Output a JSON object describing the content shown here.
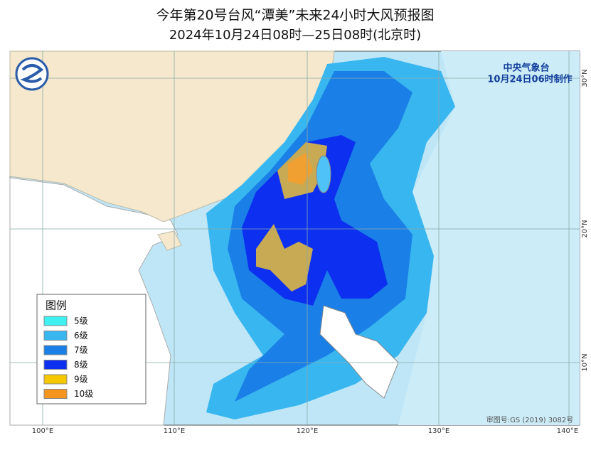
{
  "header": {
    "title": "今年第20号台风“潭美”未来24小时大风预报图",
    "subtitle": "2024年10月24日08时—25日08时(北京时)"
  },
  "agency": {
    "name": "中央气象台",
    "issued": "10月24日06时制作"
  },
  "legend": {
    "title": "图例",
    "items": [
      {
        "label": "5级",
        "color": "#3ff0f0"
      },
      {
        "label": "6级",
        "color": "#38b6f0"
      },
      {
        "label": "7级",
        "color": "#1a7fe6"
      },
      {
        "label": "8级",
        "color": "#0c2ff0"
      },
      {
        "label": "9级",
        "color": "#f5c800"
      },
      {
        "label": "10级",
        "color": "#f5951e"
      }
    ]
  },
  "axes": {
    "longitudes": [
      "100°E",
      "110°E",
      "120°E",
      "130°E",
      "140°E"
    ],
    "latitudes": [
      "30°N",
      "20°N",
      "10°N"
    ]
  },
  "footer": "审图号:GS (2019) 3082号"
}
